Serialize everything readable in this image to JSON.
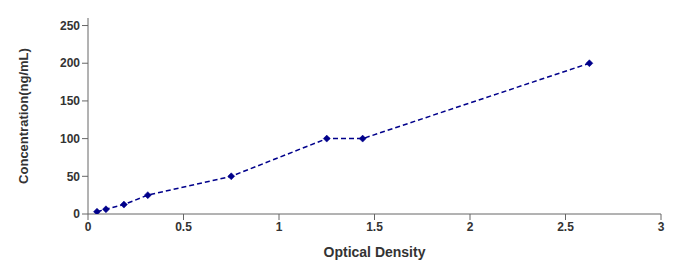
{
  "chart_data": {
    "type": "line",
    "x": [
      0.047,
      0.094,
      0.188,
      0.313,
      0.75,
      1.25,
      1.438,
      2.625
    ],
    "values": [
      3.125,
      6.25,
      12.5,
      25,
      50,
      100,
      100,
      200
    ],
    "color": "#00008B",
    "marker": "diamond",
    "line_style": "dashed",
    "xlabel": "Optical Density",
    "ylabel": "Concentration(ng/mL)",
    "xlim": [
      0,
      3
    ],
    "ylim": [
      0,
      260
    ],
    "xticks": [
      0,
      0.5,
      1,
      1.5,
      2,
      2.5,
      3
    ],
    "yticks": [
      0,
      50,
      100,
      150,
      200,
      250
    ],
    "grid": false
  }
}
